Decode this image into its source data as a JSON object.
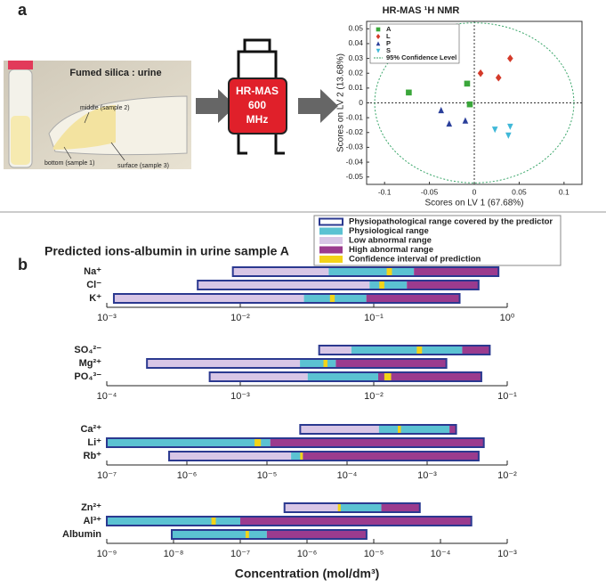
{
  "panel_a": {
    "label": "a",
    "photo": {
      "title": "Fumed silica : urine",
      "labels": [
        "middle (sample 2)",
        "bottom (sample 1)",
        "surface (sample 3)"
      ]
    },
    "device": {
      "lines": [
        "HR-MAS",
        "600",
        "MHz"
      ]
    }
  },
  "panel_b": {
    "label": "b",
    "title": "Predicted ions-albumin in urine sample A",
    "xlabel": "Concentration (mol/dm³)",
    "legend": [
      {
        "name": "Physiopathological range covered by the predictor",
        "color": "#2b3990"
      },
      {
        "name": "Physiological range",
        "color": "#5bc2d2"
      },
      {
        "name": "Low abnormal range",
        "color": "#d8c6e6"
      },
      {
        "name": "High abnormal range",
        "color": "#9b3b8e"
      },
      {
        "name": "Confidence interval of prediction",
        "color": "#f3d318"
      }
    ]
  },
  "chart_data": [
    {
      "type": "scatter",
      "title": "HR-MAS ¹H NMR",
      "xlabel": "Scores on LV 1 (67.68%)",
      "ylabel": "Scores on LV 2 (13.68%)",
      "xlim": [
        -0.12,
        0.12
      ],
      "ylim": [
        -0.055,
        0.055
      ],
      "xticks": [
        -0.1,
        -0.05,
        0,
        0.05,
        0.1
      ],
      "yticks": [
        -0.05,
        -0.04,
        -0.03,
        -0.02,
        -0.01,
        0,
        0.01,
        0.02,
        0.03,
        0.04,
        0.05
      ],
      "confidence_label": "95% Confidence Level",
      "confidence_ellipse": {
        "rx": 0.111,
        "ry": 0.054,
        "color": "#3aa66a"
      },
      "series": [
        {
          "name": "A",
          "color": "#3aa63a",
          "marker": "square",
          "x": [
            -0.073,
            -0.008,
            -0.005
          ],
          "y": [
            0.007,
            0.013,
            -0.001
          ]
        },
        {
          "name": "L",
          "color": "#d43a2a",
          "marker": "diamond",
          "x": [
            0.007,
            0.027,
            0.04
          ],
          "y": [
            0.02,
            0.017,
            0.03
          ]
        },
        {
          "name": "P",
          "color": "#2a3f9a",
          "marker": "triangle-up",
          "x": [
            -0.037,
            -0.028,
            -0.01
          ],
          "y": [
            -0.005,
            -0.014,
            -0.012
          ]
        },
        {
          "name": "S",
          "color": "#3fb8d8",
          "marker": "triangle-down",
          "x": [
            0.023,
            0.04,
            0.038
          ],
          "y": [
            -0.018,
            -0.016,
            -0.022
          ]
        }
      ]
    },
    {
      "type": "range",
      "log_x": true,
      "xlim": [
        0.001,
        1
      ],
      "xticks": [
        {
          "value": 0.001,
          "label": "10⁻³"
        },
        {
          "value": 0.01,
          "label": "10⁻²"
        },
        {
          "value": 0.1,
          "label": "10⁻¹"
        },
        {
          "value": 1,
          "label": "10⁰"
        }
      ],
      "items": [
        {
          "name": "Na⁺",
          "range": [
            0.0088,
            0.86
          ],
          "physiological": [
            0.046,
            0.2
          ],
          "confidence": [
            0.125,
            0.137
          ]
        },
        {
          "name": "Cl⁻",
          "range": [
            0.0048,
            0.61
          ],
          "physiological": [
            0.093,
            0.177
          ],
          "confidence": [
            0.11,
            0.12
          ]
        },
        {
          "name": "K⁺",
          "range": [
            0.00113,
            0.44
          ],
          "physiological": [
            0.03,
            0.088
          ],
          "confidence": [
            0.047,
            0.051
          ]
        }
      ]
    },
    {
      "type": "range",
      "log_x": true,
      "xlim": [
        0.0001,
        0.1
      ],
      "xticks": [
        {
          "value": 0.0001,
          "label": "10⁻⁴"
        },
        {
          "value": 0.001,
          "label": "10⁻³"
        },
        {
          "value": 0.01,
          "label": "10⁻²"
        },
        {
          "value": 0.1,
          "label": "10⁻¹"
        }
      ],
      "items": [
        {
          "name": "SO₄²⁻",
          "range": [
            0.0039,
            0.074
          ],
          "physiological": [
            0.0068,
            0.046
          ],
          "confidence": [
            0.021,
            0.023
          ]
        },
        {
          "name": "Mg²⁺",
          "range": [
            0.0002,
            0.035
          ],
          "physiological": [
            0.0028,
            0.0052
          ],
          "confidence": [
            0.0042,
            0.0045
          ]
        },
        {
          "name": "PO₄³⁻",
          "range": [
            0.00059,
            0.064
          ],
          "physiological": [
            0.0032,
            0.0108
          ],
          "confidence": [
            0.012,
            0.0135
          ]
        }
      ]
    },
    {
      "type": "range",
      "log_x": true,
      "xlim": [
        1e-07,
        0.01
      ],
      "xticks": [
        {
          "value": 1e-07,
          "label": "10⁻⁷"
        },
        {
          "value": 1e-06,
          "label": "10⁻⁶"
        },
        {
          "value": 1e-05,
          "label": "10⁻⁵"
        },
        {
          "value": 0.0001,
          "label": "10⁻⁴"
        },
        {
          "value": 0.001,
          "label": "10⁻³"
        },
        {
          "value": 0.01,
          "label": "10⁻²"
        }
      ],
      "items": [
        {
          "name": "Ca²⁺",
          "range": [
            2.6e-05,
            0.0023
          ],
          "physiological": [
            0.00025,
            0.0019
          ],
          "confidence": [
            0.00043,
            0.00047
          ]
        },
        {
          "name": "Li⁺",
          "range": [
            1e-07,
            0.0051
          ],
          "physiological": [
            1e-07,
            1.1e-05
          ],
          "confidence": [
            7e-06,
            8.4e-06
          ]
        },
        {
          "name": "Rb⁺",
          "range": [
            6e-07,
            0.0044
          ],
          "physiological": [
            2e-05,
            2.8e-05
          ],
          "confidence": [
            2.6e-05,
            2.8e-05
          ]
        }
      ]
    },
    {
      "type": "range",
      "log_x": true,
      "xlim": [
        1e-09,
        0.001
      ],
      "xticks": [
        {
          "value": 1e-09,
          "label": "10⁻⁹"
        },
        {
          "value": 1e-08,
          "label": "10⁻⁸"
        },
        {
          "value": 1e-07,
          "label": "10⁻⁷"
        },
        {
          "value": 1e-06,
          "label": "10⁻⁶"
        },
        {
          "value": 1e-05,
          "label": "10⁻⁵"
        },
        {
          "value": 0.0001,
          "label": "10⁻⁴"
        },
        {
          "value": 0.001,
          "label": "10⁻³"
        }
      ],
      "items": [
        {
          "name": "Zn²⁺",
          "range": [
            4.6e-07,
            4.9e-05
          ],
          "physiological": [
            3e-06,
            1.3e-05
          ],
          "confidence": [
            2.9e-06,
            3.2e-06
          ]
        },
        {
          "name": "Al³⁺",
          "range": [
            1e-09,
            0.00029
          ],
          "physiological": [
            1e-09,
            1e-07
          ],
          "confidence": [
            3.7e-08,
            4.3e-08
          ]
        },
        {
          "name": "Albumin",
          "range": [
            9.4e-09,
            7.8e-06
          ],
          "physiological": [
            9.4e-09,
            2.5e-07
          ],
          "confidence": [
            1.2e-07,
            1.35e-07
          ]
        }
      ]
    }
  ]
}
